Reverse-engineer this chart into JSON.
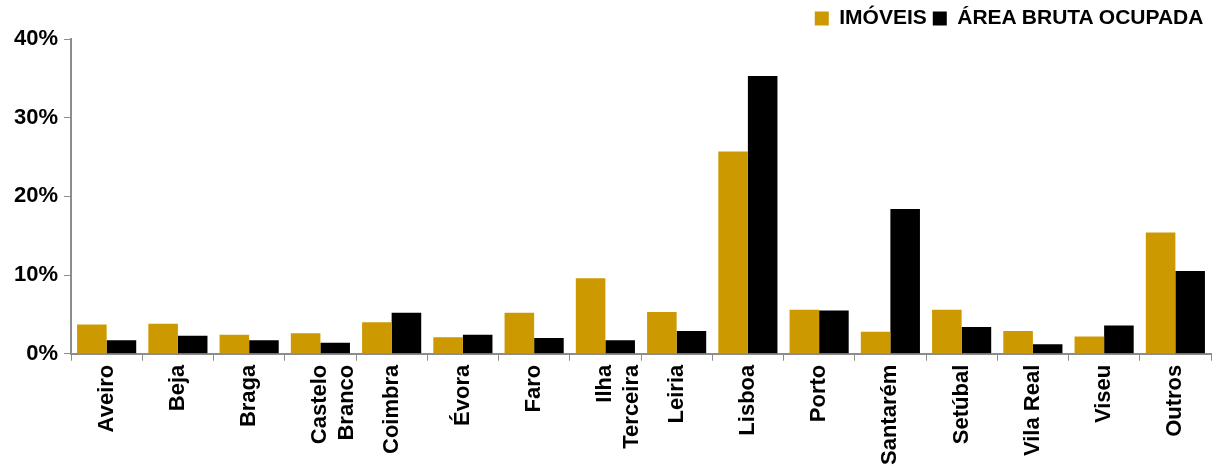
{
  "chart_data": {
    "type": "bar",
    "categories": [
      "Aveiro",
      "Beja",
      "Braga",
      "Castelo Branco",
      "Coimbra",
      "Évora",
      "Faro",
      "Ilha Terceira",
      "Leiria",
      "Lisboa",
      "Porto",
      "Santarém",
      "Setúbal",
      "Vila Real",
      "Viseu",
      "Outros"
    ],
    "series": [
      {
        "name": "IMÓVEIS",
        "color": "#cc9900",
        "values": [
          3.7,
          3.8,
          2.4,
          2.6,
          4.0,
          2.1,
          5.2,
          9.6,
          5.3,
          25.7,
          5.6,
          2.8,
          5.6,
          2.9,
          2.2,
          15.4
        ]
      },
      {
        "name": "ÁREA BRUTA OCUPADA",
        "color": "#000000",
        "values": [
          1.7,
          2.3,
          1.7,
          1.4,
          5.2,
          2.4,
          2.0,
          1.7,
          2.9,
          35.3,
          5.5,
          18.4,
          3.4,
          1.2,
          3.6,
          10.5
        ]
      }
    ],
    "ylim": [
      0,
      40
    ],
    "yticks": [
      {
        "value": 0,
        "label": "0%"
      },
      {
        "value": 10,
        "label": "10%"
      },
      {
        "value": 20,
        "label": "20%"
      },
      {
        "value": 30,
        "label": "30%"
      },
      {
        "value": 40,
        "label": "40%"
      }
    ],
    "legend": "top right"
  }
}
